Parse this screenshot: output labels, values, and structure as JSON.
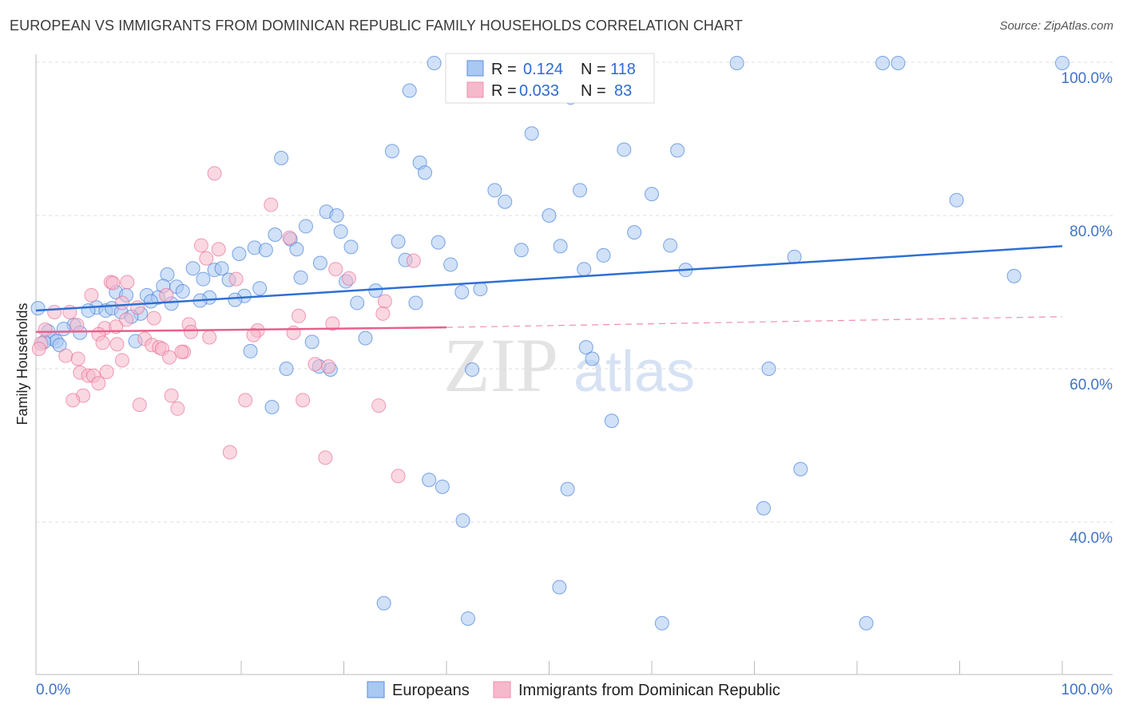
{
  "title": "EUROPEAN VS IMMIGRANTS FROM DOMINICAN REPUBLIC FAMILY HOUSEHOLDS CORRELATION CHART",
  "source": "Source: ZipAtlas.com",
  "watermark": "ZIPatlas",
  "colors": {
    "blue": "#2f6fd4",
    "blue_fill": "#a9c8f2",
    "pink": "#e8608c",
    "pink_fill": "#f6b8cb",
    "tick": "#3f73c9"
  },
  "chart_data": {
    "type": "scatter",
    "title": "EUROPEAN VS IMMIGRANTS FROM DOMINICAN REPUBLIC FAMILY HOUSEHOLDS CORRELATION CHART",
    "xlabel": "",
    "ylabel": "Family Households",
    "xlim": [
      0,
      100
    ],
    "ylim": [
      20,
      100
    ],
    "x_tick_labels": [
      "0.0%",
      "100.0%"
    ],
    "y_ticks": [
      100,
      80,
      60,
      40
    ],
    "y_tick_labels": [
      "100.0%",
      "80.0%",
      "60.0%",
      "40.0%"
    ],
    "grid": true,
    "legend_position": "top-center",
    "stats": [
      {
        "r_label": "R =",
        "r": "0.124",
        "n_label": "N =",
        "n": "118"
      },
      {
        "r_label": "R =",
        "r": "0.033",
        "n_label": "N =",
        "n": "83"
      }
    ],
    "series": [
      {
        "name": "Europeans",
        "trend": {
          "x": [
            0,
            100
          ],
          "y": [
            67.6,
            76.0
          ]
        },
        "points": [
          [
            38.8,
            99.9
          ],
          [
            48.6,
            99.8
          ],
          [
            68.3,
            99.9
          ],
          [
            82.5,
            99.9
          ],
          [
            84.0,
            99.9
          ],
          [
            100,
            99.9
          ],
          [
            36.4,
            96.3
          ],
          [
            52.1,
            95.4
          ],
          [
            48.3,
            90.7
          ],
          [
            34.7,
            88.4
          ],
          [
            57.3,
            88.6
          ],
          [
            62.5,
            88.5
          ],
          [
            23.9,
            87.5
          ],
          [
            37.4,
            86.9
          ],
          [
            37.9,
            85.6
          ],
          [
            44.7,
            83.3
          ],
          [
            53.0,
            83.3
          ],
          [
            45.7,
            81.8
          ],
          [
            60.0,
            82.8
          ],
          [
            89.7,
            82.0
          ],
          [
            28.3,
            80.5
          ],
          [
            29.3,
            80.0
          ],
          [
            50.0,
            80.0
          ],
          [
            26.3,
            78.6
          ],
          [
            29.7,
            77.9
          ],
          [
            58.3,
            77.8
          ],
          [
            23.3,
            77.5
          ],
          [
            24.8,
            76.9
          ],
          [
            35.3,
            76.6
          ],
          [
            39.2,
            76.5
          ],
          [
            21.3,
            75.8
          ],
          [
            22.4,
            75.5
          ],
          [
            25.4,
            75.6
          ],
          [
            30.7,
            75.9
          ],
          [
            47.3,
            75.5
          ],
          [
            51.1,
            76.0
          ],
          [
            61.8,
            76.1
          ],
          [
            19.8,
            75.0
          ],
          [
            55.3,
            74.8
          ],
          [
            73.9,
            74.6
          ],
          [
            36.0,
            74.2
          ],
          [
            40.4,
            73.6
          ],
          [
            27.7,
            73.8
          ],
          [
            15.3,
            73.1
          ],
          [
            17.4,
            72.9
          ],
          [
            18.1,
            73.1
          ],
          [
            53.4,
            73.0
          ],
          [
            63.3,
            72.9
          ],
          [
            12.8,
            72.3
          ],
          [
            95.3,
            72.1
          ],
          [
            25.8,
            71.9
          ],
          [
            16.3,
            71.7
          ],
          [
            18.8,
            71.6
          ],
          [
            30.2,
            71.4
          ],
          [
            12.4,
            70.8
          ],
          [
            13.7,
            70.7
          ],
          [
            21.8,
            70.5
          ],
          [
            43.3,
            70.4
          ],
          [
            41.5,
            70.0
          ],
          [
            33.1,
            70.2
          ],
          [
            7.8,
            70.0
          ],
          [
            14.3,
            70.1
          ],
          [
            10.8,
            69.6
          ],
          [
            8.8,
            69.6
          ],
          [
            16.9,
            69.3
          ],
          [
            20.3,
            69.5
          ],
          [
            19.4,
            69.0
          ],
          [
            11.9,
            69.3
          ],
          [
            11.2,
            68.8
          ],
          [
            16.0,
            68.9
          ],
          [
            13.2,
            68.5
          ],
          [
            31.3,
            68.6
          ],
          [
            37.0,
            68.6
          ],
          [
            5.9,
            68.0
          ],
          [
            6.8,
            67.6
          ],
          [
            5.1,
            67.6
          ],
          [
            7.4,
            67.9
          ],
          [
            8.3,
            67.4
          ],
          [
            10.2,
            67.2
          ],
          [
            9.3,
            66.8
          ],
          [
            0.2,
            67.9
          ],
          [
            3.7,
            65.7
          ],
          [
            2.7,
            65.2
          ],
          [
            4.3,
            64.7
          ],
          [
            1.2,
            64.9
          ],
          [
            1.6,
            63.9
          ],
          [
            2.0,
            63.6
          ],
          [
            2.3,
            63.1
          ],
          [
            0.8,
            63.5
          ],
          [
            9.7,
            63.6
          ],
          [
            32.1,
            64.0
          ],
          [
            26.9,
            63.5
          ],
          [
            53.6,
            62.8
          ],
          [
            20.9,
            62.3
          ],
          [
            54.2,
            61.3
          ],
          [
            24.4,
            60.0
          ],
          [
            27.6,
            60.3
          ],
          [
            28.7,
            59.9
          ],
          [
            42.5,
            59.9
          ],
          [
            71.4,
            60.0
          ],
          [
            23.0,
            55.0
          ],
          [
            56.1,
            53.2
          ],
          [
            74.5,
            46.9
          ],
          [
            38.3,
            45.5
          ],
          [
            39.6,
            44.6
          ],
          [
            51.8,
            44.3
          ],
          [
            41.6,
            40.2
          ],
          [
            70.9,
            41.8
          ],
          [
            51.0,
            31.5
          ],
          [
            33.9,
            29.4
          ],
          [
            42.1,
            27.4
          ],
          [
            61.0,
            26.8
          ],
          [
            80.9,
            26.8
          ]
        ]
      },
      {
        "name": "Immigrants from Dominican Republic",
        "trend": {
          "x": [
            0,
            40,
            100
          ],
          "y": [
            64.8,
            65.4,
            66.8
          ],
          "solid_until": 40
        },
        "points": [
          [
            17.4,
            85.5
          ],
          [
            22.9,
            81.4
          ],
          [
            16.1,
            76.1
          ],
          [
            17.8,
            75.6
          ],
          [
            24.7,
            77.1
          ],
          [
            16.6,
            74.4
          ],
          [
            36.8,
            74.1
          ],
          [
            29.2,
            73.0
          ],
          [
            19.5,
            71.7
          ],
          [
            30.5,
            71.8
          ],
          [
            7.3,
            71.3
          ],
          [
            7.5,
            71.2
          ],
          [
            8.9,
            71.3
          ],
          [
            5.4,
            69.6
          ],
          [
            12.7,
            69.6
          ],
          [
            8.4,
            68.6
          ],
          [
            34.0,
            68.8
          ],
          [
            9.9,
            68.0
          ],
          [
            33.8,
            67.2
          ],
          [
            3.3,
            67.4
          ],
          [
            1.8,
            67.4
          ],
          [
            25.6,
            66.9
          ],
          [
            11.5,
            66.6
          ],
          [
            8.8,
            66.4
          ],
          [
            14.9,
            65.8
          ],
          [
            28.9,
            65.9
          ],
          [
            4.0,
            65.7
          ],
          [
            6.7,
            65.3
          ],
          [
            7.8,
            65.5
          ],
          [
            15.1,
            64.8
          ],
          [
            21.6,
            65.0
          ],
          [
            25.1,
            64.7
          ],
          [
            6.1,
            64.5
          ],
          [
            21.2,
            64.4
          ],
          [
            16.9,
            64.1
          ],
          [
            10.6,
            63.9
          ],
          [
            0.9,
            65.1
          ],
          [
            0.5,
            63.3
          ],
          [
            0.3,
            62.6
          ],
          [
            7.9,
            63.2
          ],
          [
            6.5,
            63.4
          ],
          [
            11.3,
            63.1
          ],
          [
            12.0,
            62.8
          ],
          [
            12.3,
            62.6
          ],
          [
            14.4,
            62.2
          ],
          [
            14.2,
            62.2
          ],
          [
            2.9,
            61.7
          ],
          [
            8.4,
            61.1
          ],
          [
            13.0,
            61.5
          ],
          [
            4.1,
            61.3
          ],
          [
            4.3,
            59.5
          ],
          [
            6.9,
            59.6
          ],
          [
            5.1,
            59.1
          ],
          [
            5.6,
            59.1
          ],
          [
            6.1,
            58.1
          ],
          [
            27.2,
            60.6
          ],
          [
            28.5,
            60.3
          ],
          [
            4.6,
            56.5
          ],
          [
            3.6,
            55.9
          ],
          [
            13.2,
            56.5
          ],
          [
            20.4,
            55.9
          ],
          [
            26.0,
            55.9
          ],
          [
            10.1,
            55.3
          ],
          [
            13.8,
            54.8
          ],
          [
            33.4,
            55.2
          ],
          [
            18.9,
            49.1
          ],
          [
            28.2,
            48.4
          ],
          [
            35.3,
            46.0
          ]
        ]
      }
    ]
  }
}
